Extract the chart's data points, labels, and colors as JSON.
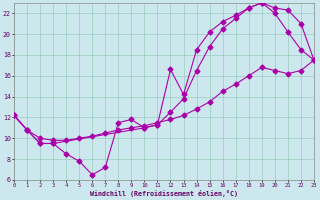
{
  "bg_color": "#cce8ee",
  "line_color": "#aa00aa",
  "grid_color": "#99ccbb",
  "xmin": 0,
  "xmax": 23,
  "ymin": 6,
  "ymax": 23,
  "xlabel": "Windchill (Refroidissement éolien,°C)",
  "curve_zigzag_x": [
    0,
    1,
    2,
    3,
    4,
    5,
    6,
    7,
    8,
    9,
    10,
    11,
    12,
    13,
    14,
    15,
    16,
    17,
    18,
    19,
    20,
    21,
    22,
    23
  ],
  "curve_zigzag_y": [
    12.2,
    10.8,
    9.5,
    9.5,
    8.5,
    7.8,
    6.5,
    7.2,
    11.5,
    11.8,
    11.0,
    11.3,
    16.6,
    14.2,
    18.5,
    20.2,
    21.2,
    21.8,
    22.5,
    23.0,
    22.0,
    20.2,
    18.5,
    17.5
  ],
  "curve_smooth_x": [
    0,
    1,
    2,
    3,
    10,
    11,
    12,
    13,
    14,
    15,
    16,
    17,
    18,
    19,
    20,
    21,
    22,
    23
  ],
  "curve_smooth_y": [
    12.2,
    10.8,
    9.5,
    9.5,
    11.0,
    11.3,
    12.5,
    13.8,
    16.5,
    18.8,
    20.5,
    21.5,
    22.5,
    23.0,
    22.5,
    22.3,
    21.0,
    17.5
  ],
  "curve_lower_x": [
    0,
    1,
    2,
    3,
    4,
    5,
    6,
    7,
    8,
    9,
    10,
    11,
    12,
    13,
    14,
    15,
    16,
    17,
    18,
    19,
    20,
    21,
    22,
    23
  ],
  "curve_lower_y": [
    12.2,
    10.8,
    10.0,
    9.8,
    9.8,
    10.0,
    10.2,
    10.5,
    10.8,
    11.0,
    11.2,
    11.5,
    11.8,
    12.2,
    12.8,
    13.5,
    14.5,
    15.2,
    16.0,
    16.8,
    16.5,
    16.2,
    16.5,
    17.5
  ],
  "xticks": [
    0,
    1,
    2,
    3,
    4,
    5,
    6,
    7,
    8,
    9,
    10,
    11,
    12,
    13,
    14,
    15,
    16,
    17,
    18,
    19,
    20,
    21,
    22,
    23
  ],
  "yticks": [
    6,
    8,
    10,
    12,
    14,
    16,
    18,
    20,
    22
  ]
}
